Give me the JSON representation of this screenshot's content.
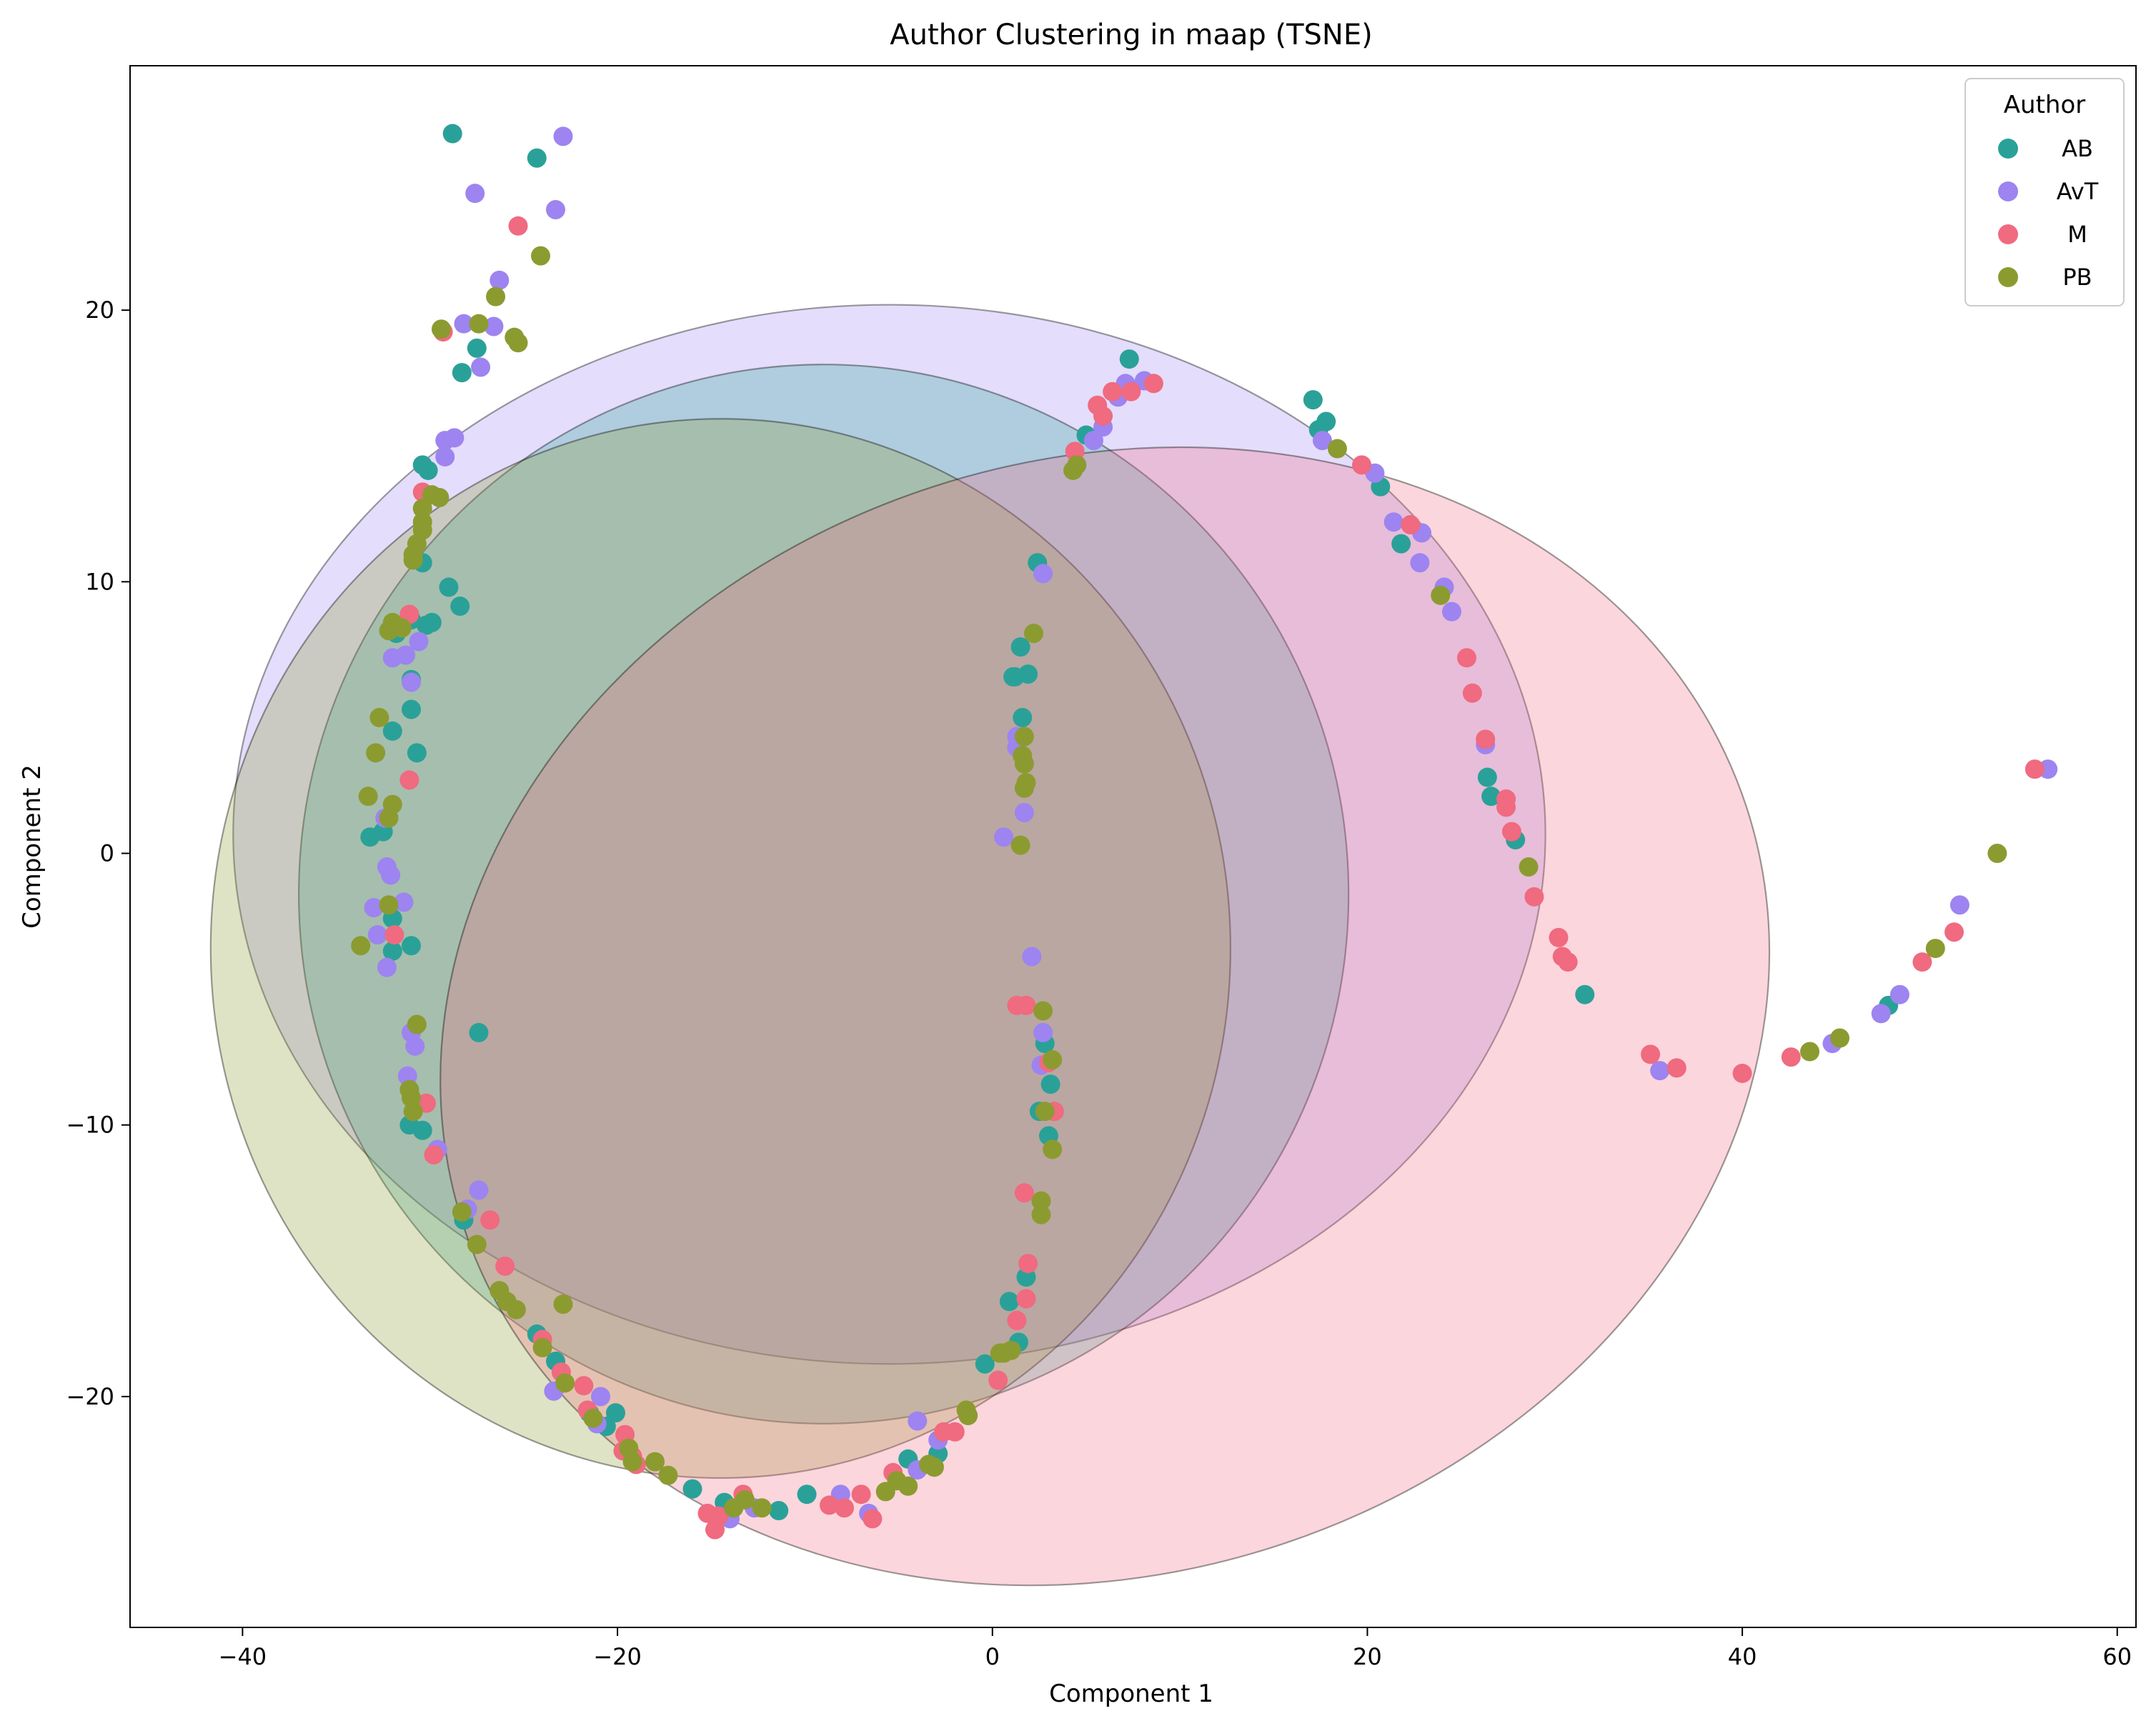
{
  "chart_data": {
    "type": "scatter",
    "title": "Author Clustering in maap (TSNE)",
    "xlabel": "Component 1",
    "ylabel": "Component 2",
    "xlim": [
      -46,
      61
    ],
    "ylim": [
      -28.5,
      29
    ],
    "xticks": [
      -40,
      -20,
      0,
      20,
      40,
      60
    ],
    "yticks": [
      -20,
      -10,
      0,
      10,
      20
    ],
    "xtick_labels": [
      "−40",
      "−20",
      "0",
      "20",
      "40",
      "60"
    ],
    "ytick_labels": [
      "−20",
      "−10",
      "0",
      "10",
      "20"
    ],
    "grid": false,
    "legend": {
      "title": "Author",
      "placement": "top-right"
    },
    "series": [
      {
        "name": "AB",
        "color": "#2aa198",
        "points": [
          [
            -28.8,
            26.5
          ],
          [
            -24.3,
            25.6
          ],
          [
            -27.5,
            18.6
          ],
          [
            -28.3,
            17.7
          ],
          [
            -30.4,
            14.3
          ],
          [
            -30.1,
            14.1
          ],
          [
            -29,
            9.8
          ],
          [
            -28.4,
            9.1
          ],
          [
            -30.4,
            10.7
          ],
          [
            -30.2,
            8.4
          ],
          [
            -29.9,
            8.5
          ],
          [
            -31,
            8.6
          ],
          [
            -31.8,
            8.1
          ],
          [
            -31,
            6.4
          ],
          [
            -31,
            5.3
          ],
          [
            -32,
            4.5
          ],
          [
            -30.7,
            3.7
          ],
          [
            -32.5,
            0.8
          ],
          [
            -33.2,
            0.6
          ],
          [
            -32,
            -2.4
          ],
          [
            -31,
            -3.4
          ],
          [
            -32,
            -3.6
          ],
          [
            -27.4,
            -6.6
          ],
          [
            -31.1,
            -10
          ],
          [
            -30.4,
            -10.2
          ],
          [
            -28.2,
            -13.5
          ],
          [
            -24.3,
            -17.7
          ],
          [
            -23.3,
            -18.7
          ],
          [
            -21.5,
            -20.6
          ],
          [
            -20.1,
            -20.6
          ],
          [
            -20.6,
            -21.1
          ],
          [
            -16,
            -23.4
          ],
          [
            -14.3,
            -23.9
          ],
          [
            -11.4,
            -24.2
          ],
          [
            -9.9,
            -23.6
          ],
          [
            -4.5,
            -22.3
          ],
          [
            -2.9,
            -22.1
          ],
          [
            -0.4,
            -18.8
          ],
          [
            0.9,
            -16.5
          ],
          [
            1.4,
            -18
          ],
          [
            1.8,
            -15.6
          ],
          [
            1.1,
            6.5
          ],
          [
            1.9,
            6.6
          ],
          [
            1.5,
            7.6
          ],
          [
            1.6,
            5
          ],
          [
            1.2,
            6.5
          ],
          [
            2.4,
            10.7
          ],
          [
            2.8,
            -7
          ],
          [
            3.1,
            -8.5
          ],
          [
            2.5,
            -9.5
          ],
          [
            3,
            -10.4
          ],
          [
            5,
            15.4
          ],
          [
            7.3,
            18.2
          ],
          [
            17.1,
            16.7
          ],
          [
            17.8,
            15.9
          ],
          [
            17.4,
            15.6
          ],
          [
            20.7,
            13.5
          ],
          [
            21.8,
            11.4
          ],
          [
            26.4,
            2.8
          ],
          [
            26.6,
            2.1
          ],
          [
            27.9,
            0.5
          ],
          [
            31.6,
            -5.2
          ],
          [
            47.8,
            -5.6
          ]
        ]
      },
      {
        "name": "AvT",
        "color": "#9d84f0",
        "points": [
          [
            -22.9,
            26.4
          ],
          [
            -27.6,
            24.3
          ],
          [
            -23.3,
            23.7
          ],
          [
            -26.3,
            21.1
          ],
          [
            -28.2,
            19.5
          ],
          [
            -26.6,
            19.4
          ],
          [
            -27.3,
            17.9
          ],
          [
            -29.2,
            15.2
          ],
          [
            -28.7,
            15.3
          ],
          [
            -29.2,
            14.6
          ],
          [
            -31.3,
            7.3
          ],
          [
            -32,
            7.2
          ],
          [
            -30.6,
            7.8
          ],
          [
            -31,
            6.3
          ],
          [
            -32.4,
            1.3
          ],
          [
            -32.3,
            -0.5
          ],
          [
            -32.1,
            -0.8
          ],
          [
            -33,
            -2
          ],
          [
            -31.4,
            -1.8
          ],
          [
            -32.8,
            -3
          ],
          [
            -32.3,
            -4.2
          ],
          [
            -31,
            -6.6
          ],
          [
            -30.8,
            -7.1
          ],
          [
            -31.2,
            -8.2
          ],
          [
            -29.6,
            -10.9
          ],
          [
            -27.4,
            -12.4
          ],
          [
            -28,
            -13.1
          ],
          [
            -23.4,
            -19.8
          ],
          [
            -20.9,
            -20
          ],
          [
            -21.1,
            -21
          ],
          [
            -4,
            -20.9
          ],
          [
            -2.9,
            -21.6
          ],
          [
            -8.1,
            -23.6
          ],
          [
            -6.6,
            -24.3
          ],
          [
            -4,
            -22.7
          ],
          [
            -12.7,
            -24.1
          ],
          [
            -14,
            -24.5
          ],
          [
            0.6,
            0.6
          ],
          [
            1.7,
            1.5
          ],
          [
            1.3,
            3.9
          ],
          [
            1.3,
            4.3
          ],
          [
            2.1,
            -3.8
          ],
          [
            2.7,
            -6.6
          ],
          [
            2.6,
            -7.8
          ],
          [
            2.7,
            10.3
          ],
          [
            5.4,
            15.2
          ],
          [
            5.9,
            15.7
          ],
          [
            6.7,
            16.8
          ],
          [
            7.1,
            17.3
          ],
          [
            8.1,
            17.4
          ],
          [
            17.6,
            15.2
          ],
          [
            20.4,
            14
          ],
          [
            21.4,
            12.2
          ],
          [
            22.9,
            11.8
          ],
          [
            22.8,
            10.7
          ],
          [
            24.5,
            8.9
          ],
          [
            24.1,
            9.8
          ],
          [
            26.3,
            4
          ],
          [
            35.6,
            -8
          ],
          [
            44.8,
            -7
          ],
          [
            47.4,
            -5.9
          ],
          [
            48.4,
            -5.2
          ],
          [
            51.6,
            -1.9
          ],
          [
            56.3,
            3.1
          ]
        ]
      },
      {
        "name": "M",
        "color": "#f06a80",
        "points": [
          [
            -25.3,
            23.1
          ],
          [
            -29.3,
            19.2
          ],
          [
            -30.4,
            13.3
          ],
          [
            -31.1,
            8.8
          ],
          [
            -31.1,
            2.7
          ],
          [
            -31.9,
            -3
          ],
          [
            -30.2,
            -9.2
          ],
          [
            -29.8,
            -11.1
          ],
          [
            -26.8,
            -13.5
          ],
          [
            -26,
            -15.2
          ],
          [
            -24,
            -17.9
          ],
          [
            -23,
            -19.1
          ],
          [
            -21.8,
            -19.6
          ],
          [
            -21.6,
            -20.5
          ],
          [
            -19.6,
            -21.4
          ],
          [
            -19.2,
            -22.2
          ],
          [
            -19.7,
            -22
          ],
          [
            -19,
            -22.5
          ],
          [
            -15.2,
            -24.3
          ],
          [
            -14.8,
            -24.9
          ],
          [
            -14.6,
            -24.4
          ],
          [
            -13.3,
            -23.6
          ],
          [
            -8.7,
            -24
          ],
          [
            -7.9,
            -24.1
          ],
          [
            -7,
            -23.6
          ],
          [
            -6.4,
            -24.5
          ],
          [
            -5.3,
            -22.8
          ],
          [
            -2.6,
            -21.3
          ],
          [
            -2,
            -21.3
          ],
          [
            0.3,
            -19.4
          ],
          [
            1.3,
            -5.6
          ],
          [
            1.8,
            -5.6
          ],
          [
            1.7,
            -12.5
          ],
          [
            1.8,
            -16.4
          ],
          [
            1.9,
            -15.1
          ],
          [
            1.3,
            -17.2
          ],
          [
            3.3,
            -9.5
          ],
          [
            3,
            -7.7
          ],
          [
            4.4,
            14.8
          ],
          [
            5.6,
            16.5
          ],
          [
            5.9,
            16.1
          ],
          [
            6.4,
            17
          ],
          [
            7.4,
            17
          ],
          [
            8.6,
            17.3
          ],
          [
            19.7,
            14.3
          ],
          [
            22.3,
            12.1
          ],
          [
            25.3,
            7.2
          ],
          [
            25.6,
            5.9
          ],
          [
            26.3,
            4.2
          ],
          [
            27.4,
            2
          ],
          [
            27.4,
            1.7
          ],
          [
            27.7,
            0.8
          ],
          [
            28.9,
            -1.6
          ],
          [
            30.2,
            -3.1
          ],
          [
            30.4,
            -3.8
          ],
          [
            30.7,
            -4
          ],
          [
            35.1,
            -7.4
          ],
          [
            36.5,
            -7.9
          ],
          [
            40,
            -8.1
          ],
          [
            42.6,
            -7.5
          ],
          [
            49.6,
            -4
          ],
          [
            51.3,
            -2.9
          ],
          [
            55.6,
            3.1
          ]
        ]
      },
      {
        "name": "PB",
        "color": "#8c9b30",
        "points": [
          [
            -24.1,
            22
          ],
          [
            -26.5,
            20.5
          ],
          [
            -27.4,
            19.5
          ],
          [
            -29.4,
            19.3
          ],
          [
            -25.5,
            19
          ],
          [
            -25.3,
            18.8
          ],
          [
            -29.9,
            13.2
          ],
          [
            -29.5,
            13.1
          ],
          [
            -30.4,
            12.7
          ],
          [
            -30.4,
            12.2
          ],
          [
            -30.4,
            11.9
          ],
          [
            -30.7,
            11.4
          ],
          [
            -30.9,
            11
          ],
          [
            -30.9,
            10.8
          ],
          [
            -32,
            8.5
          ],
          [
            -31.5,
            8.3
          ],
          [
            -32.2,
            8.2
          ],
          [
            -32.7,
            5
          ],
          [
            -32.9,
            3.7
          ],
          [
            -33.3,
            2.1
          ],
          [
            -32,
            1.8
          ],
          [
            -32.2,
            1.3
          ],
          [
            -32.2,
            -1.9
          ],
          [
            -33.7,
            -3.4
          ],
          [
            -30.7,
            -6.3
          ],
          [
            -31.1,
            -8.7
          ],
          [
            -31,
            -9
          ],
          [
            -30.9,
            -9.5
          ],
          [
            -28.3,
            -13.2
          ],
          [
            -27.5,
            -14.4
          ],
          [
            -26.3,
            -16.1
          ],
          [
            -25.9,
            -16.5
          ],
          [
            -25.4,
            -16.8
          ],
          [
            -22.9,
            -16.6
          ],
          [
            -24,
            -18.2
          ],
          [
            -22.8,
            -19.5
          ],
          [
            -21.3,
            -20.8
          ],
          [
            -19.4,
            -21.9
          ],
          [
            -19.2,
            -22.4
          ],
          [
            -18,
            -22.4
          ],
          [
            -17.3,
            -22.9
          ],
          [
            -13.8,
            -24.1
          ],
          [
            -12.3,
            -24.1
          ],
          [
            -13.2,
            -23.8
          ],
          [
            -5.7,
            -23.5
          ],
          [
            -5.1,
            -23.1
          ],
          [
            -4.5,
            -23.3
          ],
          [
            -3.4,
            -22.5
          ],
          [
            -3.1,
            -22.6
          ],
          [
            -1.4,
            -20.5
          ],
          [
            -1.3,
            -20.7
          ],
          [
            0.4,
            -18.4
          ],
          [
            0.6,
            -18.4
          ],
          [
            1,
            -18.3
          ],
          [
            1.7,
            2.4
          ],
          [
            1.8,
            2.6
          ],
          [
            1.7,
            3.3
          ],
          [
            1.6,
            3.6
          ],
          [
            1.7,
            4.3
          ],
          [
            1.5,
            0.3
          ],
          [
            2.2,
            8.1
          ],
          [
            2.7,
            -5.8
          ],
          [
            3.2,
            -7.6
          ],
          [
            2.8,
            -9.5
          ],
          [
            3.2,
            -10.9
          ],
          [
            2.6,
            -12.8
          ],
          [
            2.6,
            -13.3
          ],
          [
            4.3,
            14.1
          ],
          [
            4.5,
            14.3
          ],
          [
            18.4,
            14.9
          ],
          [
            23.9,
            9.5
          ],
          [
            28.6,
            -0.5
          ],
          [
            43.6,
            -7.3
          ],
          [
            45.2,
            -6.8
          ],
          [
            50.3,
            -3.5
          ],
          [
            53.6,
            0
          ]
        ]
      }
    ],
    "ellipses": [
      {
        "series": "AvT",
        "color": "#9d84f0",
        "center": [
          -5.5,
          0.7
        ],
        "semi_axis_x": 35,
        "semi_axis_y": 19.5,
        "angle_deg": 0
      },
      {
        "series": "AB",
        "color": "#2aa198",
        "center": [
          -9,
          -1.5
        ],
        "semi_axis_x": 28,
        "semi_axis_y": 19.5,
        "angle_deg": 0
      },
      {
        "series": "PB",
        "color": "#8c9b30",
        "center": [
          -14.5,
          -3.5
        ],
        "semi_axis_x": 27.2,
        "semi_axis_y": 19.5,
        "angle_deg": 0
      },
      {
        "series": "M",
        "color": "#f06a80",
        "center": [
          6,
          -6
        ],
        "semi_axis_x": 36,
        "semi_axis_y": 20.5,
        "angle_deg": 18
      }
    ]
  }
}
